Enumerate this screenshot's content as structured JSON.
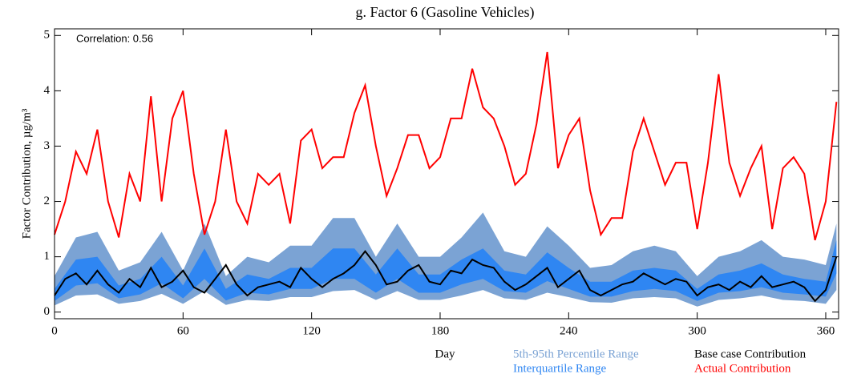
{
  "chart_data": {
    "type": "line",
    "title": "g.  Factor 6 (Gasoline Vehicles)",
    "x_label": "Day",
    "y_label": "Factor Contribution,  µg/m³",
    "annotation": "Correlation: 0.56",
    "xlim": [
      0,
      366
    ],
    "ylim": [
      -0.12,
      5.12
    ],
    "xticks": [
      0,
      60,
      120,
      180,
      240,
      300,
      360
    ],
    "yticks": [
      0,
      1,
      2,
      3,
      4,
      5
    ],
    "x": [
      0,
      5,
      10,
      15,
      20,
      25,
      30,
      35,
      40,
      45,
      50,
      55,
      60,
      65,
      70,
      75,
      80,
      85,
      90,
      95,
      100,
      105,
      110,
      115,
      120,
      125,
      130,
      135,
      140,
      145,
      150,
      155,
      160,
      165,
      170,
      175,
      180,
      185,
      190,
      195,
      200,
      205,
      210,
      215,
      220,
      225,
      230,
      235,
      240,
      245,
      250,
      255,
      260,
      265,
      270,
      275,
      280,
      285,
      290,
      295,
      300,
      305,
      310,
      315,
      320,
      325,
      330,
      335,
      340,
      345,
      350,
      355,
      360,
      365
    ],
    "bands": [
      {
        "name": "5th-95th Percentile Range",
        "color": "#7ba3d4",
        "x": [
          0,
          10,
          20,
          30,
          40,
          50,
          60,
          70,
          80,
          90,
          100,
          110,
          120,
          130,
          140,
          150,
          160,
          170,
          180,
          190,
          200,
          210,
          220,
          230,
          240,
          250,
          260,
          270,
          280,
          290,
          300,
          310,
          320,
          330,
          340,
          350,
          360,
          365
        ],
        "lower": [
          0.12,
          0.3,
          0.32,
          0.15,
          0.2,
          0.33,
          0.15,
          0.38,
          0.13,
          0.22,
          0.2,
          0.27,
          0.27,
          0.38,
          0.4,
          0.22,
          0.38,
          0.22,
          0.22,
          0.3,
          0.4,
          0.25,
          0.22,
          0.35,
          0.27,
          0.18,
          0.17,
          0.25,
          0.27,
          0.25,
          0.1,
          0.22,
          0.25,
          0.3,
          0.22,
          0.2,
          0.15,
          0.4
        ],
        "upper": [
          0.65,
          1.35,
          1.45,
          0.75,
          0.9,
          1.45,
          0.75,
          1.6,
          0.65,
          1.0,
          0.9,
          1.2,
          1.2,
          1.7,
          1.7,
          1.0,
          1.6,
          1.0,
          1.0,
          1.35,
          1.8,
          1.1,
          1.0,
          1.55,
          1.2,
          0.8,
          0.85,
          1.1,
          1.2,
          1.1,
          0.65,
          1.0,
          1.1,
          1.3,
          1.0,
          0.95,
          0.85,
          1.6
        ]
      },
      {
        "name": "Interquartile Range",
        "color": "#2f86f2",
        "x": [
          0,
          10,
          20,
          30,
          40,
          50,
          60,
          70,
          80,
          90,
          100,
          110,
          120,
          130,
          140,
          150,
          160,
          170,
          180,
          190,
          200,
          210,
          220,
          230,
          240,
          250,
          260,
          270,
          280,
          290,
          300,
          310,
          320,
          330,
          340,
          350,
          360,
          365
        ],
        "lower": [
          0.2,
          0.48,
          0.52,
          0.25,
          0.32,
          0.52,
          0.25,
          0.6,
          0.21,
          0.35,
          0.32,
          0.42,
          0.42,
          0.6,
          0.6,
          0.35,
          0.6,
          0.35,
          0.35,
          0.5,
          0.6,
          0.38,
          0.35,
          0.56,
          0.42,
          0.28,
          0.28,
          0.38,
          0.42,
          0.38,
          0.2,
          0.35,
          0.38,
          0.45,
          0.35,
          0.32,
          0.28,
          0.7
        ],
        "upper": [
          0.42,
          0.95,
          1.0,
          0.48,
          0.6,
          1.0,
          0.48,
          1.15,
          0.42,
          0.68,
          0.6,
          0.8,
          0.8,
          1.15,
          1.15,
          0.68,
          1.15,
          0.68,
          0.68,
          0.95,
          1.15,
          0.75,
          0.68,
          1.08,
          0.8,
          0.55,
          0.55,
          0.75,
          0.8,
          0.75,
          0.42,
          0.68,
          0.75,
          0.88,
          0.68,
          0.6,
          0.55,
          1.3
        ]
      }
    ],
    "series": [
      {
        "name": "Base case Contribution",
        "color": "#000000",
        "values": [
          0.3,
          0.6,
          0.7,
          0.5,
          0.75,
          0.5,
          0.35,
          0.6,
          0.45,
          0.8,
          0.45,
          0.55,
          0.75,
          0.45,
          0.35,
          0.6,
          0.85,
          0.5,
          0.3,
          0.45,
          0.5,
          0.55,
          0.45,
          0.8,
          0.6,
          0.45,
          0.6,
          0.7,
          0.85,
          1.1,
          0.85,
          0.5,
          0.55,
          0.75,
          0.85,
          0.55,
          0.5,
          0.75,
          0.7,
          0.95,
          0.85,
          0.8,
          0.55,
          0.4,
          0.5,
          0.65,
          0.8,
          0.45,
          0.6,
          0.75,
          0.4,
          0.3,
          0.4,
          0.5,
          0.55,
          0.7,
          0.6,
          0.5,
          0.6,
          0.55,
          0.3,
          0.45,
          0.5,
          0.4,
          0.55,
          0.45,
          0.65,
          0.45,
          0.5,
          0.55,
          0.45,
          0.2,
          0.4,
          1.0
        ]
      },
      {
        "name": "Actual Contribution",
        "color": "#ff0000",
        "values": [
          1.4,
          2.0,
          2.9,
          2.5,
          3.3,
          2.0,
          1.35,
          2.5,
          2.0,
          3.9,
          2.0,
          3.5,
          4.0,
          2.5,
          1.4,
          2.0,
          3.3,
          2.0,
          1.6,
          2.5,
          2.3,
          2.5,
          1.6,
          3.1,
          3.3,
          2.6,
          2.8,
          2.8,
          3.6,
          4.1,
          3.0,
          2.1,
          2.6,
          3.2,
          3.2,
          2.6,
          2.8,
          3.5,
          3.5,
          4.4,
          3.7,
          3.5,
          3.0,
          2.3,
          2.5,
          3.4,
          4.7,
          2.6,
          3.2,
          3.5,
          2.2,
          1.4,
          1.7,
          1.7,
          2.9,
          3.5,
          2.9,
          2.3,
          2.7,
          2.7,
          1.5,
          2.7,
          4.3,
          2.7,
          2.1,
          2.6,
          3.0,
          1.5,
          2.6,
          2.8,
          2.5,
          1.3,
          2.0,
          3.8
        ]
      }
    ]
  }
}
